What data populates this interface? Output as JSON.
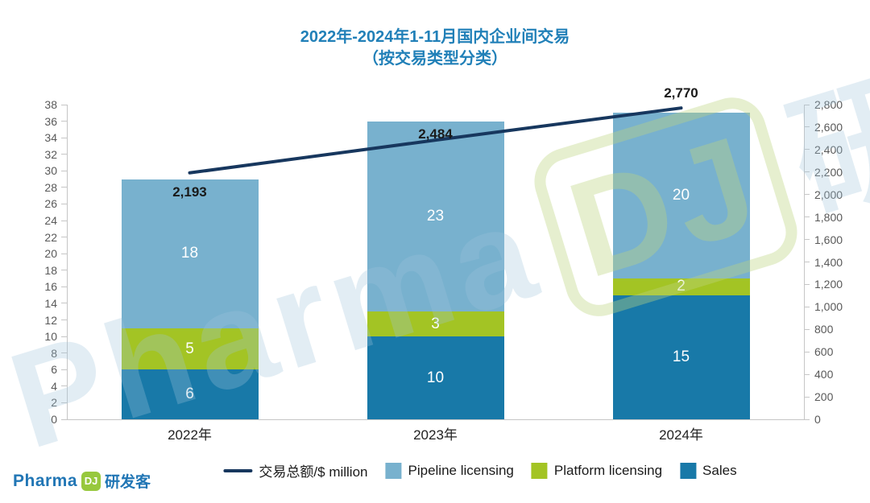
{
  "title": {
    "line1": "2022年-2024年1-11月国内企业间交易",
    "line2": "（按交易类型分类）"
  },
  "chart_data": {
    "type": "bar",
    "subtype": "stacked-bars-with-line",
    "categories": [
      "2022年",
      "2023年",
      "2024年"
    ],
    "series": [
      {
        "name": "Sales",
        "values": [
          6,
          10,
          15
        ],
        "color": "#1879A8"
      },
      {
        "name": "Platform licensing",
        "values": [
          5,
          3,
          2
        ],
        "color": "#A3C424"
      },
      {
        "name": "Pipeline licensing",
        "values": [
          18,
          23,
          20
        ],
        "color": "#78B1CE"
      }
    ],
    "stack_totals": [
      29,
      36,
      37
    ],
    "line_series": {
      "name": "交易总额/$ million",
      "values": [
        2193,
        2484,
        2770
      ],
      "labels": [
        "2,193",
        "2,484",
        "2,770"
      ],
      "color": "#17375E"
    },
    "left_axis": {
      "min": 0,
      "max": 38,
      "step": 2
    },
    "right_axis": {
      "min": 0,
      "max": 2800,
      "step": 200
    },
    "grid": false,
    "legend_position": "bottom"
  },
  "legend": {
    "items": [
      {
        "label": "交易总额/$ million",
        "marker": "line",
        "color": "#17375E"
      },
      {
        "label": "Pipeline licensing",
        "marker": "square",
        "color": "#78B1CE"
      },
      {
        "label": "Platform licensing",
        "marker": "square",
        "color": "#A3C424"
      },
      {
        "label": "Sales",
        "marker": "square",
        "color": "#1879A8"
      }
    ]
  },
  "logo": {
    "pharma": "Pharma",
    "dj": "DJ",
    "suffix": "研发客"
  },
  "watermark": {
    "pharma": "Pharma",
    "dj": "DJ",
    "suffix": "研发客"
  },
  "colors": {
    "title": "#2180B8",
    "axis": "#c6c6c6",
    "tick_text": "#595959",
    "x_label_text": "#222222",
    "bar_label_text": "#ffffff",
    "total_label_text": "#1a1a1a"
  }
}
